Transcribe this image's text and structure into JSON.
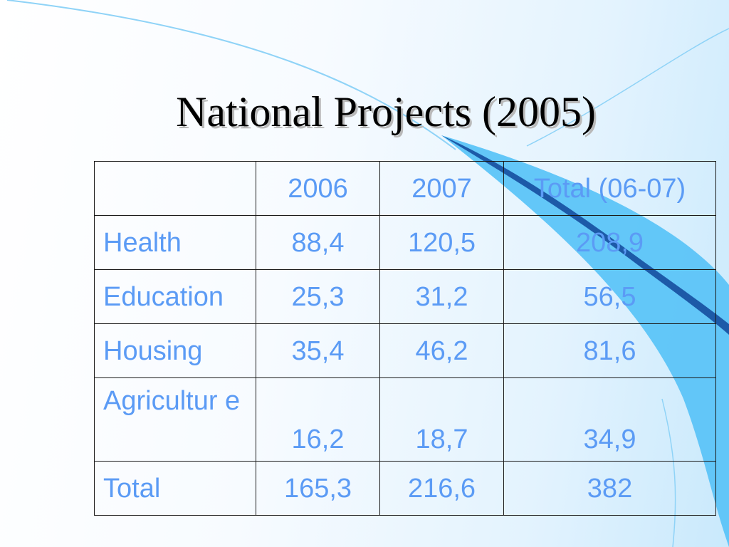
{
  "slide": {
    "title": "National Projects (2005)"
  },
  "table": {
    "header": [
      "",
      "2006",
      "2007",
      "Total (06-07)"
    ],
    "rows": [
      {
        "label": "Health",
        "y2006": "88,4",
        "y2007": "120,5",
        "total": "208,9"
      },
      {
        "label": "Education",
        "y2006": "25,3",
        "y2007": "31,2",
        "total": "56,5"
      },
      {
        "label": "Housing",
        "y2006": "35,4",
        "y2007": "46,2",
        "total": "81,6"
      },
      {
        "label": "Agricultur e",
        "y2006": "16,2",
        "y2007": "18,7",
        "total": "34,9"
      },
      {
        "label": "Total",
        "y2006": "165,3",
        "y2007": "216,6",
        "total": "382"
      }
    ]
  },
  "colors": {
    "text_blue": "#5b9bf5",
    "swoosh_blue": "#5cc4f8",
    "swoosh_dark": "#1d5aa8"
  }
}
